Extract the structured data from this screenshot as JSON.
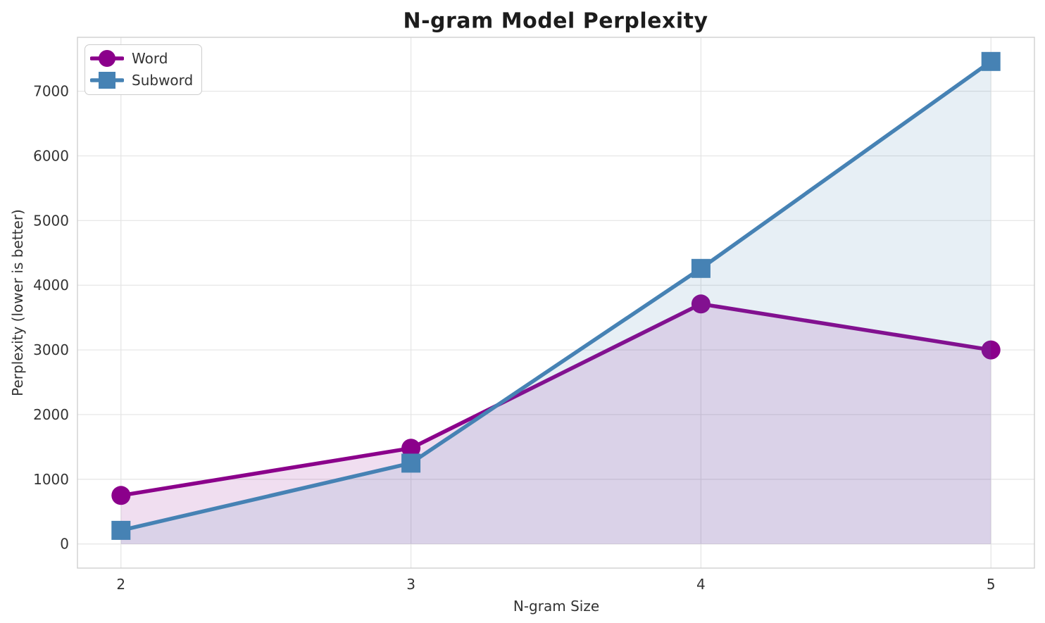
{
  "chart_data": {
    "type": "line",
    "title": "N-gram Model Perplexity",
    "xlabel": "N-gram Size",
    "ylabel": "Perplexity (lower is better)",
    "x": [
      2,
      3,
      4,
      5
    ],
    "series": [
      {
        "name": "Word",
        "marker": "circle",
        "color": "#8B008B",
        "values": [
          750,
          1480,
          3710,
          3000
        ]
      },
      {
        "name": "Subword",
        "marker": "square",
        "color": "#4682B4",
        "values": [
          210,
          1250,
          4260,
          7460
        ]
      }
    ],
    "xticks": [
      2,
      3,
      4,
      5
    ],
    "yticks": [
      0,
      1000,
      2000,
      3000,
      4000,
      5000,
      6000,
      7000
    ],
    "xlim": [
      1.85,
      5.15
    ],
    "ylim": [
      -373,
      7833
    ],
    "grid": true,
    "fill_to_zero": true,
    "fill_opacity": 0.13,
    "legend_position": "upper-left",
    "colors": {
      "grid": "#e4e4e4",
      "spine": "#cfcfcf",
      "tick_text": "#333333",
      "title_text": "#1c1c1c",
      "background": "#ffffff"
    }
  }
}
